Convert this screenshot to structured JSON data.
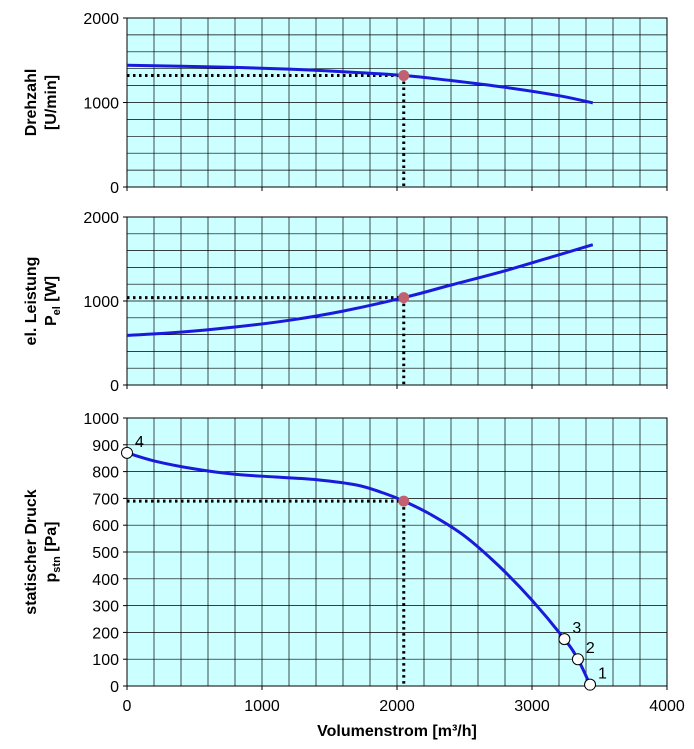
{
  "chart_data": [
    {
      "type": "line",
      "ylabel_line1": "Drehzahl",
      "ylabel_line2": "[U/min]",
      "xlim": [
        0,
        4000
      ],
      "ylim": [
        0,
        2000
      ],
      "yticks": [
        "0",
        "1000",
        "2000"
      ],
      "y_tick_values": [
        0,
        1000,
        2000
      ],
      "x_grid_step": 200,
      "y_grid_step": 200,
      "plot_color": "#ccffff",
      "line_color": "#1a1adc",
      "series": [
        {
          "x": [
            0,
            400,
            800,
            1200,
            1600,
            2050,
            2400,
            2800,
            3200,
            3450
          ],
          "y": [
            1440,
            1430,
            1415,
            1395,
            1365,
            1320,
            1260,
            1180,
            1080,
            995
          ]
        }
      ],
      "operating_point": {
        "x": 2050,
        "y": 1320,
        "color": "#c06070"
      }
    },
    {
      "type": "line",
      "ylabel_line1": "el. Leistung",
      "ylabel_line2_main": "P",
      "ylabel_line2_sub": "el",
      "ylabel_line2_unit": " [W]",
      "xlim": [
        0,
        4000
      ],
      "ylim": [
        0,
        2000
      ],
      "yticks": [
        "0",
        "1000",
        "2000"
      ],
      "y_tick_values": [
        0,
        1000,
        2000
      ],
      "x_grid_step": 200,
      "y_grid_step": 200,
      "plot_color": "#ccffff",
      "line_color": "#1a1adc",
      "series": [
        {
          "x": [
            0,
            400,
            800,
            1200,
            1600,
            2050,
            2400,
            2800,
            3200,
            3450
          ],
          "y": [
            590,
            630,
            690,
            770,
            880,
            1040,
            1190,
            1360,
            1550,
            1670
          ]
        }
      ],
      "operating_point": {
        "x": 2050,
        "y": 1040,
        "color": "#c06070"
      }
    },
    {
      "type": "line",
      "ylabel_line1": "statischer Druck",
      "ylabel_line2_main": "p",
      "ylabel_line2_sub": "stn",
      "ylabel_line2_unit": " [Pa]",
      "xlabel": "Volumenstrom [m³/h]",
      "xlim": [
        0,
        4000
      ],
      "ylim": [
        0,
        1000
      ],
      "xticks": [
        "0",
        "1000",
        "2000",
        "3000",
        "4000"
      ],
      "x_tick_values": [
        0,
        1000,
        2000,
        3000,
        4000
      ],
      "yticks": [
        "0",
        "100",
        "200",
        "300",
        "400",
        "500",
        "600",
        "700",
        "800",
        "900",
        "1000"
      ],
      "y_tick_values": [
        0,
        100,
        200,
        300,
        400,
        500,
        600,
        700,
        800,
        900,
        1000
      ],
      "x_grid_step": 200,
      "y_grid_step": 100,
      "plot_color": "#ccffff",
      "line_color": "#1a1adc",
      "series": [
        {
          "x": [
            0,
            200,
            500,
            800,
            1100,
            1400,
            1700,
            1900,
            2050,
            2250,
            2500,
            2750,
            3000,
            3240,
            3340,
            3430
          ],
          "y": [
            870,
            840,
            810,
            790,
            780,
            770,
            750,
            720,
            690,
            640,
            560,
            450,
            320,
            175,
            100,
            5
          ]
        }
      ],
      "operating_point": {
        "x": 2050,
        "y": 690,
        "color": "#c06070"
      },
      "numbered_points": [
        {
          "label": "1",
          "x": 3430,
          "y": 5
        },
        {
          "label": "2",
          "x": 3340,
          "y": 100
        },
        {
          "label": "3",
          "x": 3240,
          "y": 175
        },
        {
          "label": "4",
          "x": 0,
          "y": 870
        }
      ]
    }
  ]
}
